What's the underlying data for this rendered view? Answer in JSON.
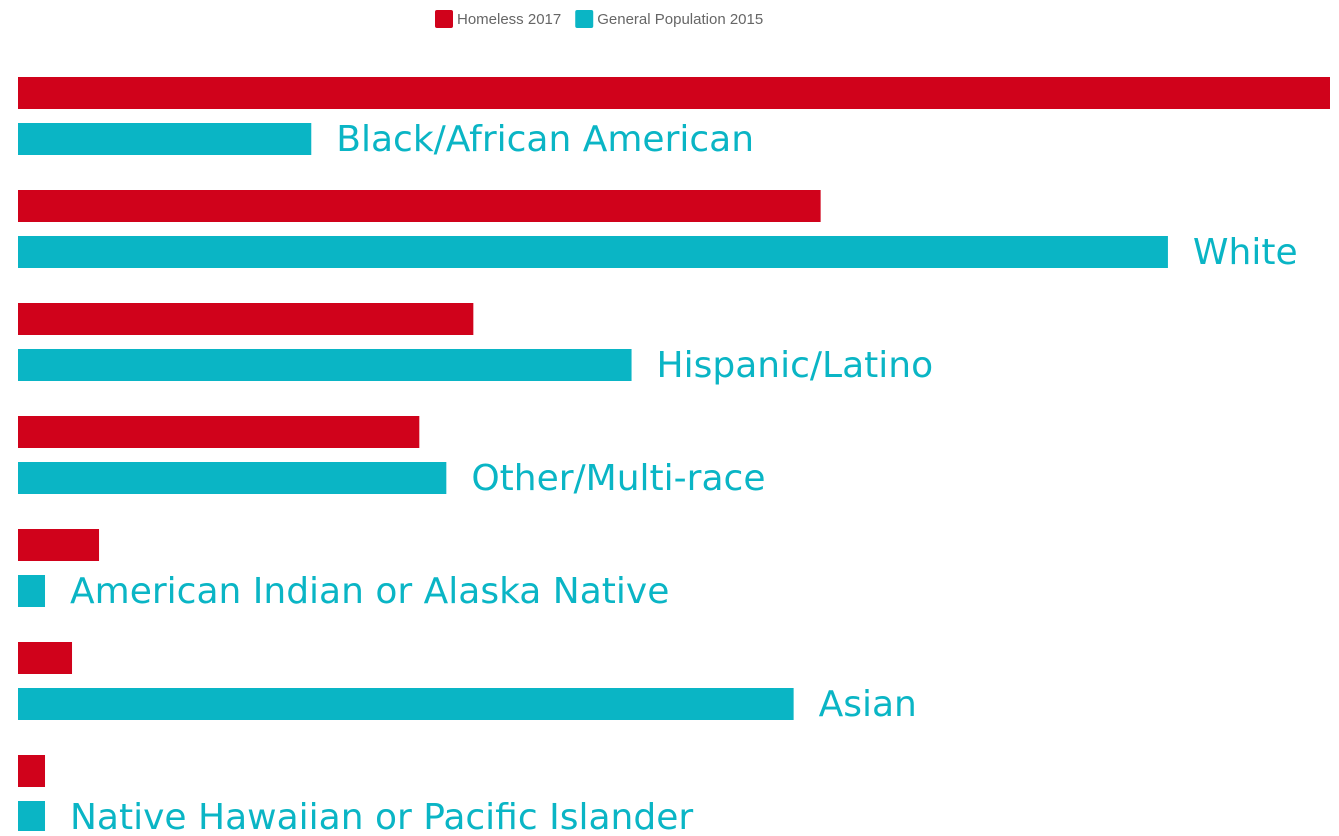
{
  "chart_data": {
    "type": "bar",
    "orientation": "horizontal",
    "categories": [
      "Black/African American",
      "White",
      "Hispanic/Latino",
      "Other/Multi-race",
      "American Indian or Alaska Native",
      "Asian",
      "Native Hawaiian or Pacific Islander"
    ],
    "series": [
      {
        "name": "Homeless 2017",
        "color": "#d0021b",
        "values": [
          34,
          20.8,
          11.8,
          10.4,
          2.1,
          1.4,
          0.7
        ]
      },
      {
        "name": "General Population 2015",
        "color": "#0ab5c5",
        "values": [
          7.6,
          29.8,
          15.9,
          11.1,
          0.7,
          20.1,
          0.7
        ]
      }
    ],
    "legend": "top"
  }
}
